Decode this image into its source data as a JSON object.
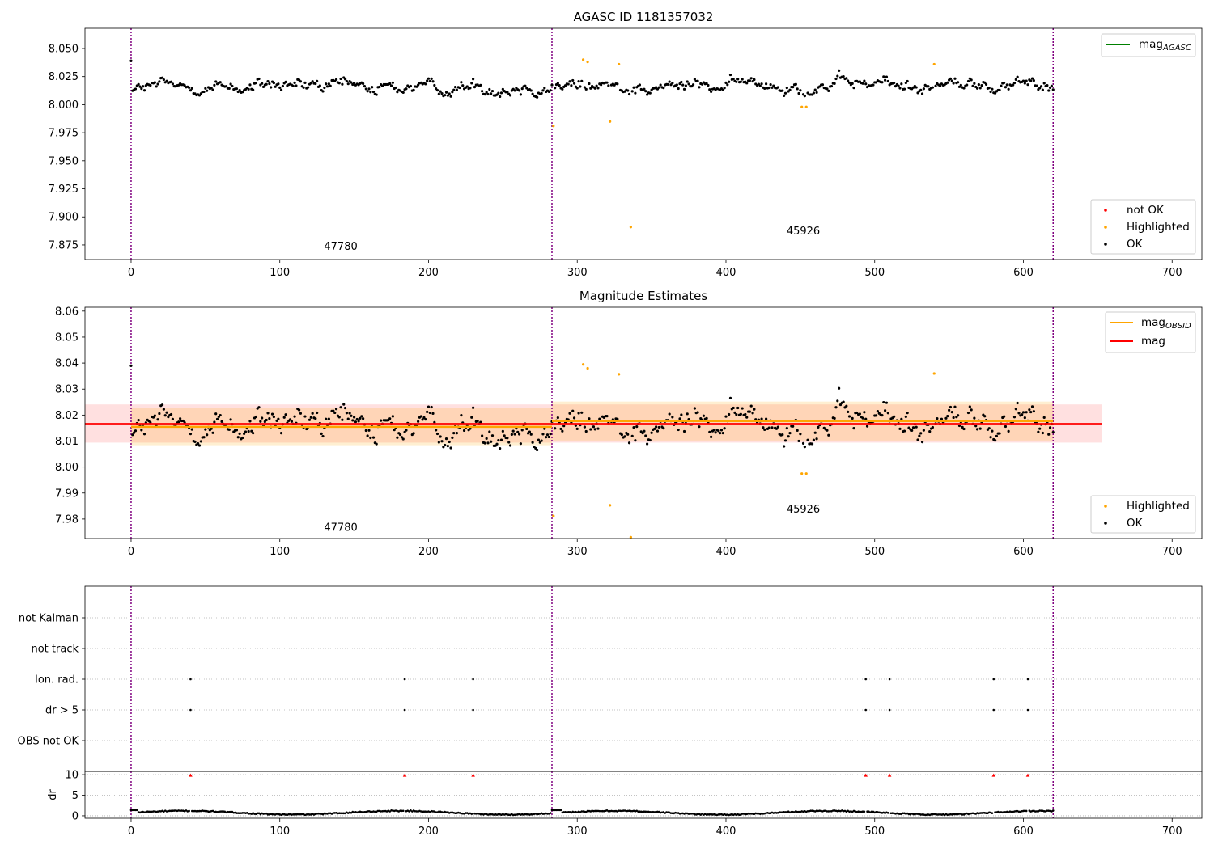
{
  "chart_data": [
    {
      "type": "scatter",
      "title": "AGASC ID 1181357032",
      "xlim": [
        -31,
        720
      ],
      "ylim": [
        7.862,
        8.068
      ],
      "x_ticks": [
        0,
        100,
        200,
        300,
        400,
        500,
        600,
        700
      ],
      "y_ticks": [
        7.875,
        7.9,
        7.925,
        7.95,
        7.975,
        8.0,
        8.025,
        8.05
      ],
      "y_tick_labels": [
        "7.875",
        "7.900",
        "7.925",
        "7.950",
        "7.975",
        "8.000",
        "8.025",
        "8.050"
      ],
      "obs_boundaries": [
        0,
        283,
        620
      ],
      "obs_labels": [
        {
          "text": "47780",
          "x": 141,
          "y": 7.8705
        },
        {
          "text": "45926",
          "x": 452,
          "y": 7.8845
        }
      ],
      "series": [
        {
          "name": "OK",
          "color": "#000000",
          "note": "about 620 samples near 8.015 ± 0.012"
        },
        {
          "name": "Highlighted",
          "color": "#ffa500",
          "points": [
            [
              284,
              7.981
            ],
            [
              304,
              8.04
            ],
            [
              307,
              8.038
            ],
            [
              322,
              7.985
            ],
            [
              328,
              8.036
            ],
            [
              336,
              7.891
            ],
            [
              451,
              7.998
            ],
            [
              454,
              7.998
            ],
            [
              540,
              8.036
            ]
          ]
        },
        {
          "name": "not OK",
          "color": "#ff0000",
          "points": []
        }
      ],
      "legend_top": {
        "position": "top-right",
        "entries": [
          {
            "label": "mag",
            "sub": "AGASC",
            "color": "#008000"
          }
        ]
      },
      "legend_bottom": {
        "position": "bottom-right",
        "entries": [
          {
            "label": "not OK",
            "color": "#ff0000"
          },
          {
            "label": "Highlighted",
            "color": "#ffa500"
          },
          {
            "label": "OK",
            "color": "#000000"
          }
        ]
      }
    },
    {
      "type": "scatter",
      "title": "Magnitude Estimates",
      "xlim": [
        -31,
        720
      ],
      "ylim": [
        7.9725,
        8.0615
      ],
      "x_ticks": [
        0,
        100,
        200,
        300,
        400,
        500,
        600,
        700
      ],
      "y_ticks": [
        7.98,
        7.99,
        8.0,
        8.01,
        8.02,
        8.03,
        8.04,
        8.05,
        8.06
      ],
      "y_tick_labels": [
        "7.98",
        "7.99",
        "8.00",
        "8.01",
        "8.02",
        "8.03",
        "8.04",
        "8.05",
        "8.06"
      ],
      "obs_boundaries": [
        0,
        283,
        620
      ],
      "obs_labels": [
        {
          "text": "47780",
          "x": 141,
          "y": 7.9755
        },
        {
          "text": "45926",
          "x": 452,
          "y": 7.9825
        }
      ],
      "mag": {
        "value": 8.0167,
        "band": [
          8.0094,
          8.0241
        ],
        "x_range": [
          -31,
          653
        ],
        "color": "#ff0000"
      },
      "mag_obsid": [
        {
          "x_range": [
            0,
            283
          ],
          "value": 8.0155,
          "band": [
            8.0084,
            8.0226
          ]
        },
        {
          "x_range": [
            283,
            620
          ],
          "value": 8.0177,
          "band": [
            8.0102,
            8.0252
          ]
        }
      ],
      "series": [
        {
          "name": "OK",
          "color": "#000000"
        },
        {
          "name": "Highlighted",
          "color": "#ffa500",
          "points": [
            [
              284,
              7.9812
            ],
            [
              304,
              8.0395
            ],
            [
              307,
              8.038
            ],
            [
              322,
              7.9853
            ],
            [
              328,
              8.0357
            ],
            [
              336,
              7.973
            ],
            [
              451,
              7.9975
            ],
            [
              454,
              7.9975
            ],
            [
              540,
              8.036
            ]
          ]
        }
      ],
      "legend_top": {
        "position": "top-right",
        "entries": [
          {
            "label": "mag",
            "sub": "OBSID",
            "color": "#ffa500"
          },
          {
            "label": "mag",
            "color": "#ff0000"
          }
        ]
      },
      "legend_bottom": {
        "position": "bottom-right",
        "entries": [
          {
            "label": "Highlighted",
            "color": "#ffa500"
          },
          {
            "label": "OK",
            "color": "#000000"
          }
        ]
      }
    },
    {
      "type": "scatter",
      "xlim": [
        -31,
        720
      ],
      "categories": [
        "OBS not OK",
        "dr > 5",
        "Ion. rad.",
        "not track",
        "not Kalman"
      ],
      "obs_boundaries": [
        0,
        283,
        620
      ],
      "flag_points": {
        "Ion. rad.": [
          40,
          184,
          230,
          494,
          510,
          580,
          603
        ],
        "dr > 5": [
          40,
          184,
          230,
          494,
          510,
          580,
          603
        ]
      }
    },
    {
      "type": "scatter",
      "xlim": [
        -31,
        720
      ],
      "ylim": [
        -0.6,
        10.8
      ],
      "ylabel": "dr",
      "y_ticks": [
        0,
        5,
        10
      ],
      "y_tick_labels": [
        "0",
        "5",
        "10"
      ],
      "x_ticks": [
        0,
        100,
        200,
        300,
        400,
        500,
        600,
        700
      ],
      "obs_boundaries": [
        0,
        283,
        620
      ],
      "outliers": {
        "x": [
          40,
          184,
          230,
          494,
          510,
          580,
          603
        ],
        "y": 9.8,
        "color": "#ff0000"
      },
      "baseline": {
        "note": "dr samples between 0 and 1.5 for each observation"
      }
    }
  ]
}
